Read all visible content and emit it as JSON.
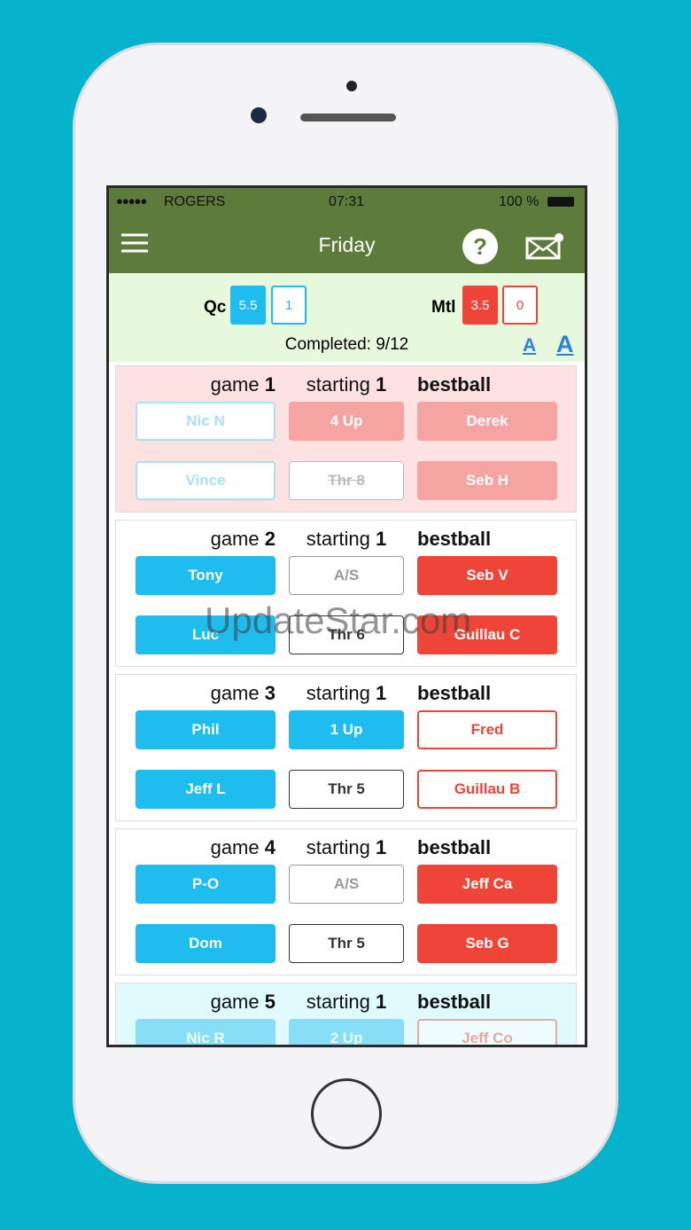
{
  "status": {
    "carrier": "ROGERS",
    "time": "07:31",
    "battery": "100 %"
  },
  "header": {
    "title": "Friday"
  },
  "score": {
    "left_team": "Qc",
    "left_points": "5.5",
    "left_wins": "1",
    "right_team": "Mtl",
    "right_points": "3.5",
    "right_wins": "0"
  },
  "completed": "Completed: 9/12",
  "font_buttons": [
    "A",
    "A"
  ],
  "watermark": "UpdateStar.com",
  "games": [
    {
      "label": "game",
      "number": "1",
      "starting": "starting",
      "start_number": "1",
      "format": "bestball",
      "rows": [
        [
          "Nic N",
          "4 Up",
          "Derek"
        ],
        [
          "Vince",
          "Thr 8",
          "Seb H"
        ]
      ]
    },
    {
      "label": "game",
      "number": "2",
      "starting": "starting",
      "start_number": "1",
      "format": "bestball",
      "rows": [
        [
          "Tony",
          "A/S",
          "Seb V"
        ],
        [
          "Luc",
          "Thr 6",
          "Guillau C"
        ]
      ]
    },
    {
      "label": "game",
      "number": "3",
      "starting": "starting",
      "start_number": "1",
      "format": "bestball",
      "rows": [
        [
          "Phil",
          "1 Up",
          "Fred"
        ],
        [
          "Jeff L",
          "Thr 5",
          "Guillau B"
        ]
      ]
    },
    {
      "label": "game",
      "number": "4",
      "starting": "starting",
      "start_number": "1",
      "format": "bestball",
      "rows": [
        [
          "P-O",
          "A/S",
          "Jeff Ca"
        ],
        [
          "Dom",
          "Thr 5",
          "Seb G"
        ]
      ]
    },
    {
      "label": "game",
      "number": "5",
      "starting": "starting",
      "start_number": "1",
      "format": "bestball",
      "rows": [
        [
          "Nic R",
          "2 Up",
          "Jeff Co"
        ]
      ]
    }
  ]
}
